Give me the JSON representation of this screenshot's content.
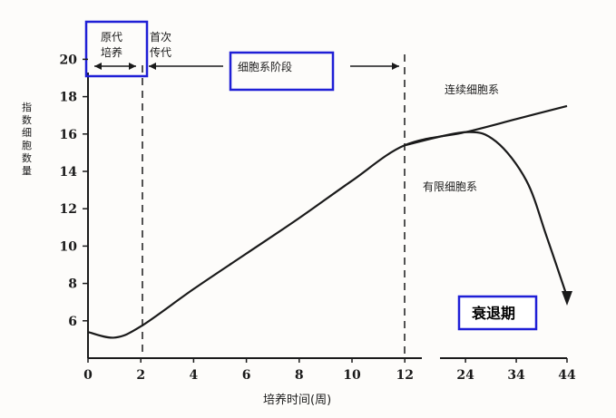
{
  "chart_data": {
    "type": "line",
    "xlabel": "培养时间(周)",
    "ylabel": "指数细胞数量",
    "x_ticks_main": [
      "0",
      "2",
      "4",
      "6",
      "8",
      "10",
      "12"
    ],
    "x_ticks_broken": [
      "24",
      "34",
      "44"
    ],
    "y_ticks": [
      "6",
      "8",
      "10",
      "12",
      "14",
      "16",
      "18",
      "20"
    ],
    "ylim": [
      4,
      20
    ],
    "xlim_main": [
      0,
      12
    ],
    "xlim_broken": [
      12,
      44
    ],
    "phases": [
      {
        "label": "原代培养",
        "x_start": 0,
        "x_end": 2,
        "highlighted": true
      },
      {
        "label": "首次传代",
        "x_start": 2,
        "x_end": 2.4,
        "highlighted": false
      },
      {
        "label": "细胞系阶段",
        "x_start": 2,
        "x_end": 12,
        "highlighted": true
      }
    ],
    "series": [
      {
        "name": "连续细胞系",
        "points": [
          [
            0,
            5.4
          ],
          [
            1,
            5.1
          ],
          [
            2,
            5.7
          ],
          [
            4,
            7.7
          ],
          [
            6,
            9.6
          ],
          [
            8,
            11.5
          ],
          [
            10,
            13.5
          ],
          [
            12,
            15.4
          ],
          [
            24,
            16.1
          ],
          [
            34,
            16.8
          ],
          [
            44,
            17.5
          ]
        ]
      },
      {
        "name": "有限细胞系",
        "points": [
          [
            12,
            15.4
          ],
          [
            24,
            16.1
          ],
          [
            30,
            15.6
          ],
          [
            36,
            13.5
          ],
          [
            40,
            10.5
          ],
          [
            44,
            7.3
          ]
        ]
      }
    ],
    "annotation": "衰退期",
    "colors": {
      "curve": "#1a1a1a",
      "highlight_box": "#1f1fd6"
    }
  }
}
